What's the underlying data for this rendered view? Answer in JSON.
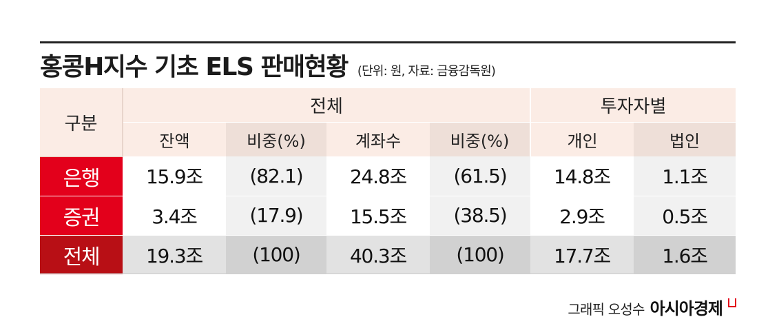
{
  "title": "홍콩H지수 기초 ELS 판매현황",
  "subtitle": "(단위: 원, 자료: 금융감독원)",
  "headers": {
    "category": "구분",
    "group_total": "전체",
    "group_investor": "투자자별",
    "balance": "잔액",
    "share1": "비중(%)",
    "accounts": "계좌수",
    "share2": "비중(%)",
    "individual": "개인",
    "corporate": "법인"
  },
  "rows": [
    {
      "label": "은행",
      "balance": "15.9조",
      "share1": "(82.1)",
      "accounts": "24.8조",
      "share2": "(61.5)",
      "individual": "14.8조",
      "corporate": "1.1조"
    },
    {
      "label": "증권",
      "balance": "3.4조",
      "share1": "(17.9)",
      "accounts": "15.5조",
      "share2": "(38.5)",
      "individual": "2.9조",
      "corporate": "0.5조"
    },
    {
      "label": "전체",
      "balance": "19.3조",
      "share1": "(100)",
      "accounts": "40.3조",
      "share2": "(100)",
      "individual": "17.7조",
      "corporate": "1.6조"
    }
  ],
  "credit": {
    "text": "그래픽 오성수",
    "brand": "아시아경제"
  },
  "colors": {
    "accent_red": "#e3001b",
    "total_red": "#b80f15",
    "header_peach": "#fbece5"
  }
}
